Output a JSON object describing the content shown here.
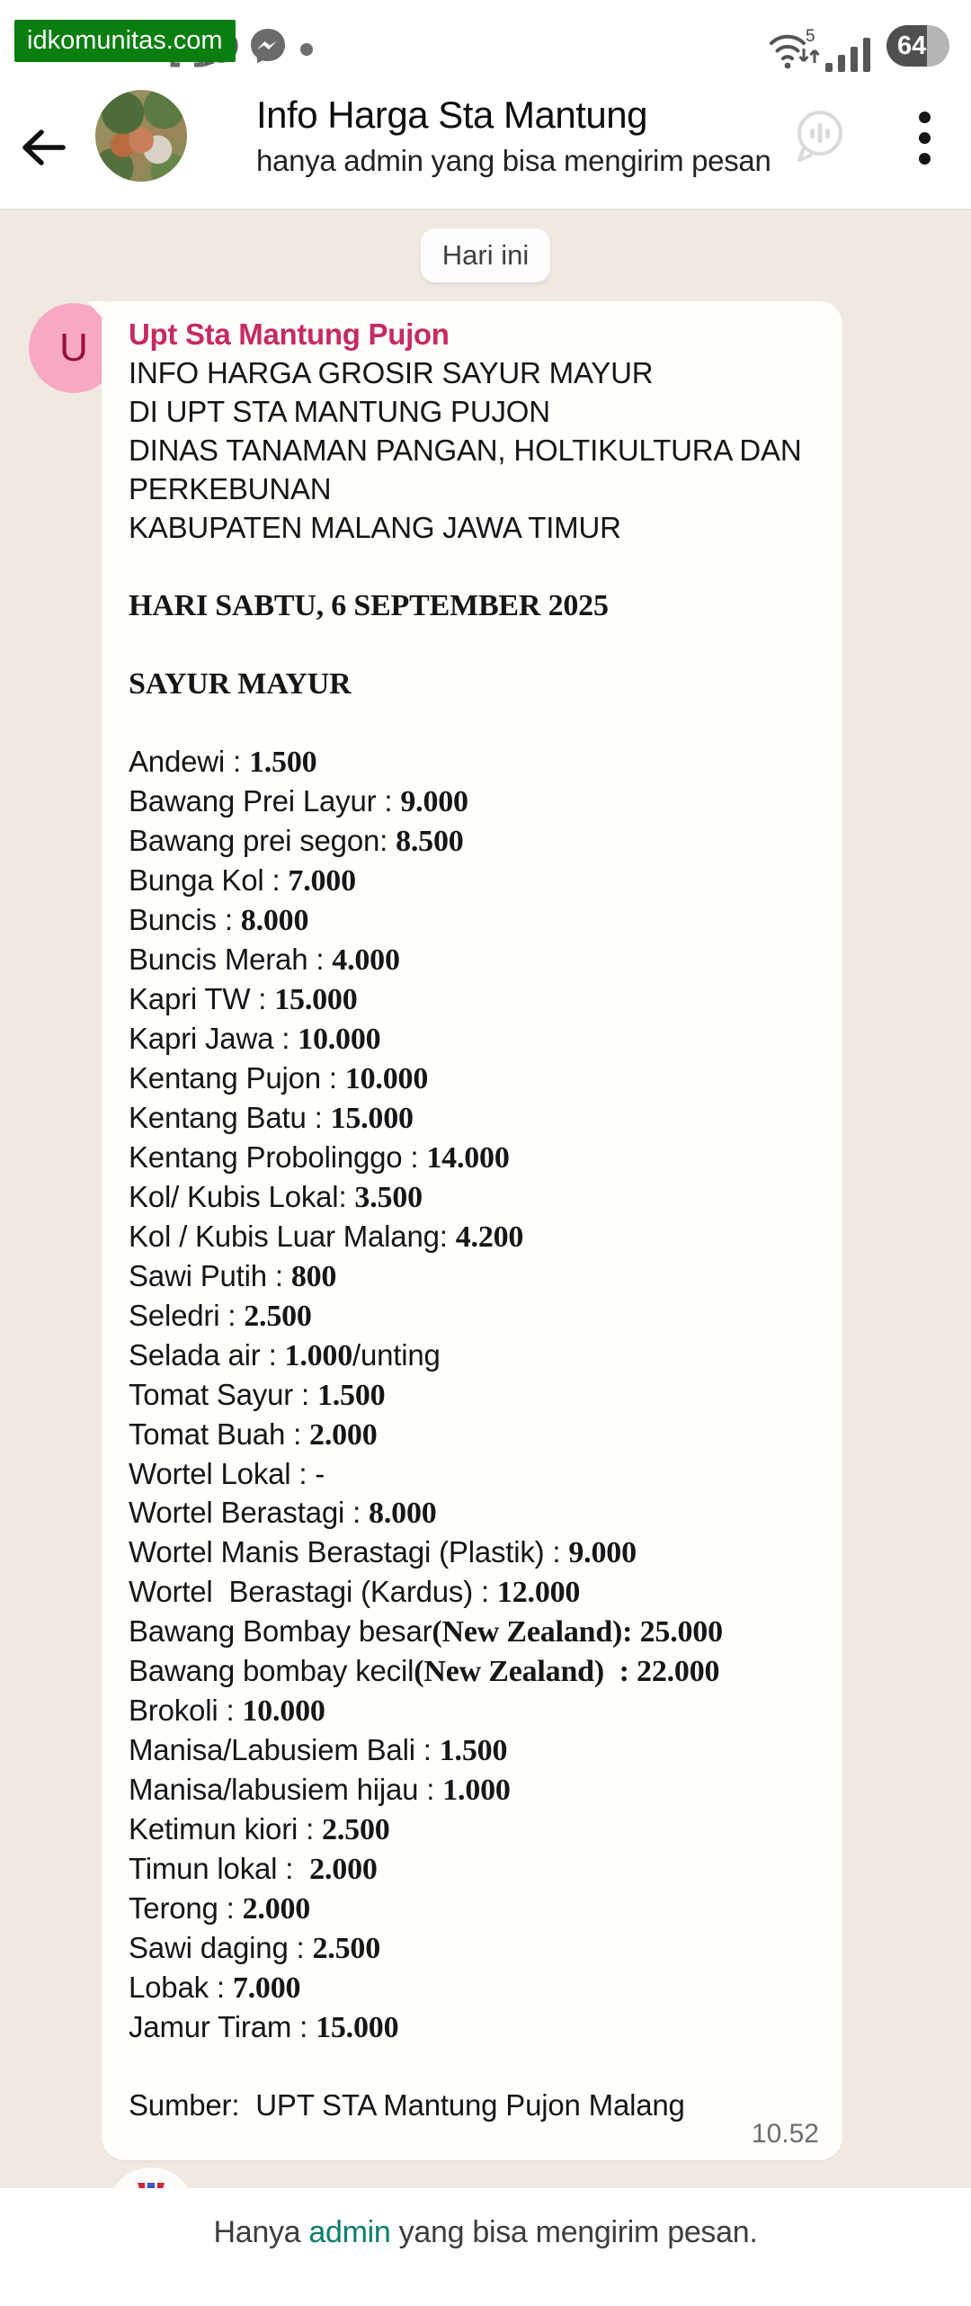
{
  "status_bar": {
    "watermark_label": "idkomunitas.com",
    "wifi_speed_label": "5",
    "battery_percent": "64",
    "icons": [
      "scan-brackets-icon",
      "whatsapp-icon",
      "messenger-icon",
      "notification-dot",
      "wifi-icon",
      "signal-bars-icon",
      "battery-indicator"
    ]
  },
  "header": {
    "title": "Info Harga Sta Mantung",
    "subtitle": "hanya admin yang bisa mengirim pesan",
    "icons": [
      "back-arrow-icon",
      "channel-voice-icon",
      "kebab-menu-icon"
    ]
  },
  "chat": {
    "date_chip": "Hari ini",
    "message": {
      "sender": "Upt Sta Mantung Pujon",
      "avatar_letter": "U",
      "time": "10.52",
      "reaction": "military-medal-emoji",
      "lines": [
        {
          "pre": "INFO HARGA GROSIR SAYUR MAYUR"
        },
        {
          "pre": "DI UPT STA MANTUNG PUJON"
        },
        {
          "pre": "DINAS TANAMAN PANGAN, HOLTIKULTURA DAN"
        },
        {
          "pre": "PERKEBUNAN"
        },
        {
          "pre": "KABUPATEN MALANG JAWA TIMUR"
        },
        {},
        {
          "bold": "HARI SABTU, 6 SEPTEMBER 2025"
        },
        {},
        {
          "bold": "SAYUR MAYUR"
        },
        {},
        {
          "pre": "Andewi : ",
          "bold": "1.500"
        },
        {
          "pre": "Bawang Prei Layur : ",
          "bold": "9.000"
        },
        {
          "pre": "Bawang prei segon: ",
          "bold": "8.500"
        },
        {
          "pre": "Bunga Kol : ",
          "bold": "7.000"
        },
        {
          "pre": "Buncis : ",
          "bold": "8.000"
        },
        {
          "pre": "Buncis Merah : ",
          "bold": "4.000"
        },
        {
          "pre": "Kapri TW : ",
          "bold": "15.000"
        },
        {
          "pre": "Kapri Jawa : ",
          "bold": "10.000"
        },
        {
          "pre": "Kentang Pujon : ",
          "bold": "10.000"
        },
        {
          "pre": "Kentang Batu : ",
          "bold": "15.000"
        },
        {
          "pre": "Kentang Probolinggo : ",
          "bold": "14.000"
        },
        {
          "pre": "Kol/ Kubis Lokal: ",
          "bold": "3.500"
        },
        {
          "pre": "Kol / Kubis Luar Malang: ",
          "bold": "4.200"
        },
        {
          "pre": "Sawi Putih : ",
          "bold": "800"
        },
        {
          "pre": "Seledri : ",
          "bold": "2.500"
        },
        {
          "pre": "Selada air : ",
          "bold": "1.000",
          "post": "/unting"
        },
        {
          "pre": "Tomat Sayur : ",
          "bold": "1.500"
        },
        {
          "pre": "Tomat Buah : ",
          "bold": "2.000"
        },
        {
          "pre": "Wortel Lokal : -"
        },
        {
          "pre": "Wortel Berastagi : ",
          "bold": "8.000"
        },
        {
          "pre": "Wortel Manis Berastagi (Plastik) : ",
          "bold": "9.000"
        },
        {
          "pre": "Wortel  Berastagi (Kardus) : ",
          "bold": "12.000"
        },
        {
          "pre": "Bawang Bombay besar",
          "bold": "(New Zealand): 25.000"
        },
        {
          "pre": "Bawang bombay kecil",
          "bold": "(New Zealand)  : 22.000"
        },
        {
          "pre": "Brokoli : ",
          "bold": "10.000"
        },
        {
          "pre": "Manisa/Labusiem Bali : ",
          "bold": "1.500"
        },
        {
          "pre": "Manisa/labusiem hijau : ",
          "bold": "1.000"
        },
        {
          "pre": "Ketimun kiori : ",
          "bold": "2.500"
        },
        {
          "pre": "Timun lokal :  ",
          "bold": "2.000"
        },
        {
          "pre": "Terong : ",
          "bold": "2.000"
        },
        {
          "pre": "Sawi daging : ",
          "bold": "2.500"
        },
        {
          "pre": "Lobak : ",
          "bold": "7.000"
        },
        {
          "pre": "Jamur Tiram : ",
          "bold": "15.000"
        },
        {},
        {
          "pre": "Sumber:  UPT STA Mantung Pujon Malang"
        }
      ]
    }
  },
  "footer": {
    "text_prefix": "Hanya ",
    "admin_word": "admin",
    "text_suffix": " yang bisa mengirim pesan."
  },
  "colors": {
    "accent_green": "#0b7e11",
    "sender_pink": "#c62a63",
    "admin_teal": "#0a7d6c",
    "chat_bg": "#f0e9e2",
    "bubble_bg": "#fffefb",
    "avatar_pink": "#f7a9c4",
    "avatar_letter": "#97123f"
  }
}
